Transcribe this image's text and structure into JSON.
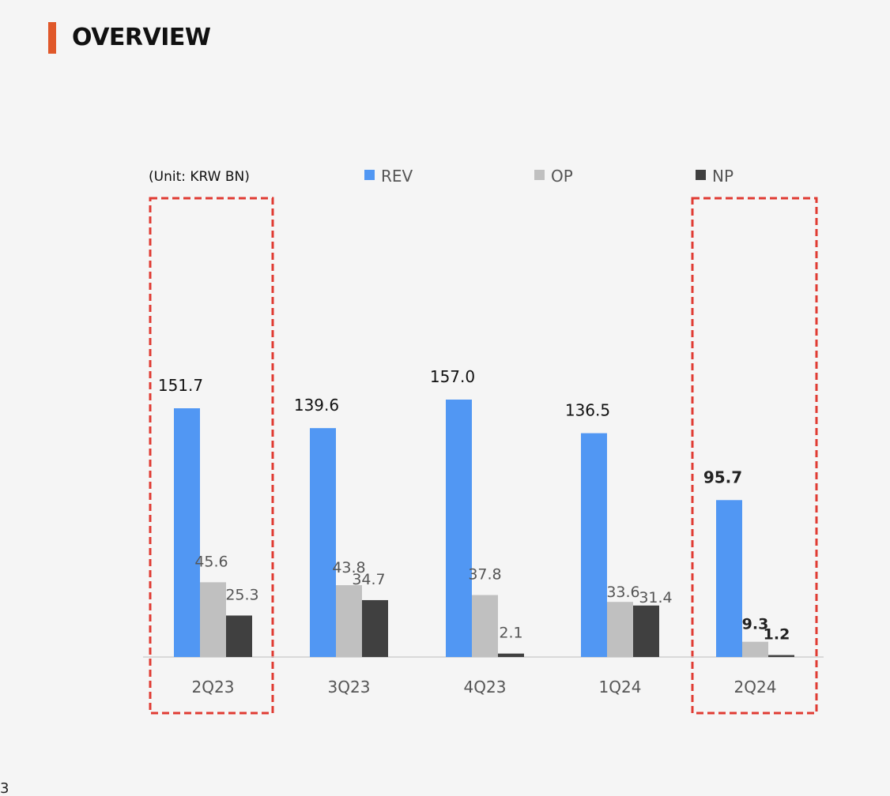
{
  "header": {
    "title": "OVERVIEW",
    "page_number": "3"
  },
  "chart_data": {
    "type": "bar",
    "unit_label": "(Unit: KRW BN)",
    "categories": [
      "2Q23",
      "3Q23",
      "4Q23",
      "1Q24",
      "2Q24"
    ],
    "series": [
      {
        "name": "REV",
        "values": [
          151.7,
          139.6,
          157.0,
          136.5,
          95.7
        ],
        "labels": [
          "151.7",
          "139.6",
          "157.0",
          "136.5",
          "95.7"
        ]
      },
      {
        "name": "OP",
        "values": [
          45.6,
          43.8,
          37.8,
          33.6,
          9.3
        ],
        "labels": [
          "45.6",
          "43.8",
          "37.8",
          "33.6",
          "9.3"
        ]
      },
      {
        "name": "NP",
        "values": [
          25.3,
          34.7,
          2.1,
          31.4,
          1.2
        ],
        "labels": [
          "25.3",
          "34.7",
          "2.1",
          "31.4",
          "1.2"
        ]
      }
    ],
    "colors": {
      "REV": "#5197f3",
      "OP": "#c0c0c0",
      "NP": "#404040"
    },
    "ylim": [
      0,
      160
    ],
    "highlighted_categories": [
      "2Q23",
      "2Q24"
    ],
    "highlight_color": "#e03b32",
    "legend_position": "top",
    "grid": false
  }
}
